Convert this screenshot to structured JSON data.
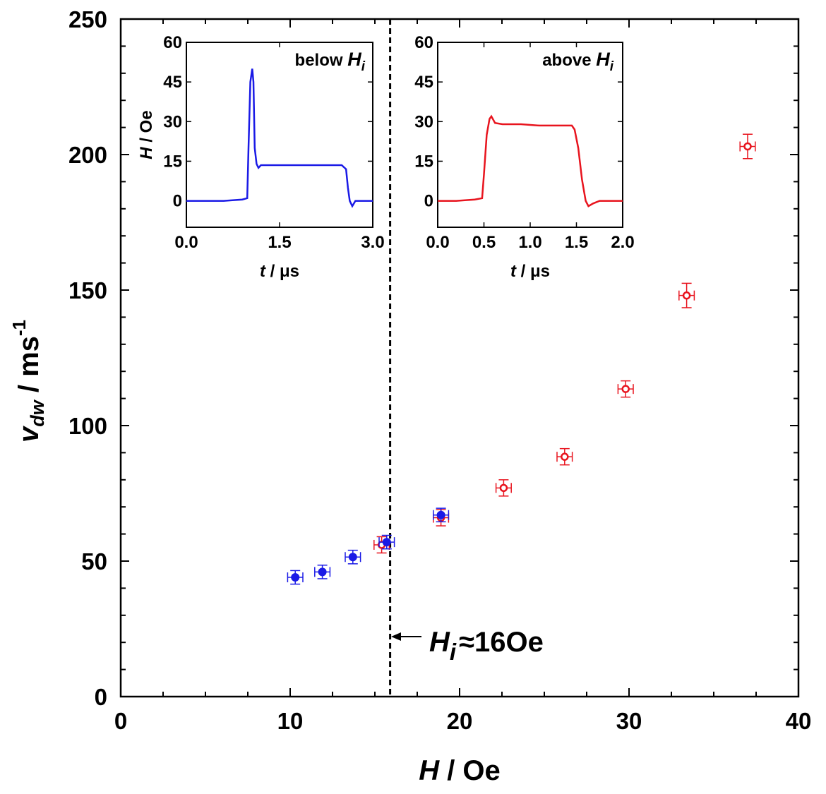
{
  "chart_data": [
    {
      "type": "scatter",
      "id": "main",
      "xlabel": {
        "symbol": "H",
        "unit": " / Oe"
      },
      "ylabel": {
        "symbol": "v",
        "sub": "dw",
        "unit": " / ms",
        "sup": "-1"
      },
      "xlim": [
        0,
        40
      ],
      "ylim": [
        0,
        250
      ],
      "xticks": [
        0,
        10,
        20,
        30,
        40
      ],
      "yticks": [
        0,
        50,
        100,
        150,
        200,
        250
      ],
      "series": [
        {
          "name": "open-red",
          "color": "#e8141e",
          "marker": "open-circle",
          "x": [
            15.4,
            18.9,
            22.6,
            26.2,
            29.8,
            33.4,
            37.0
          ],
          "y": [
            56,
            66,
            77,
            88.5,
            113.5,
            148,
            203
          ],
          "xerr": [
            0.45,
            0.45,
            0.45,
            0.45,
            0.45,
            0.45,
            0.45
          ],
          "yerr": [
            3,
            3,
            3,
            3,
            3,
            4.5,
            4.5
          ]
        },
        {
          "name": "filled-blue",
          "color": "#1a1ae6",
          "marker": "filled-circle",
          "x": [
            10.3,
            11.9,
            13.7,
            15.7,
            18.9
          ],
          "y": [
            44,
            46,
            51.5,
            57,
            67
          ],
          "xerr": [
            0.45,
            0.45,
            0.45,
            0.45,
            0.45
          ],
          "yerr": [
            2.5,
            2.5,
            2.5,
            2.5,
            2.5
          ]
        }
      ],
      "annotation": {
        "x": 15.9,
        "label_symbol": "H",
        "label_sub": "i",
        "label_rest": "≈16Oe"
      }
    },
    {
      "type": "line",
      "id": "inset-below",
      "title_text": "below ",
      "title_symbol": "H",
      "title_sub": "i",
      "xlabel": {
        "symbol": "t",
        "unit": " / μs"
      },
      "ylabel": {
        "symbol": "H",
        "unit": " / Oe"
      },
      "xlim": [
        0,
        3
      ],
      "ylim": [
        -10,
        60
      ],
      "xticks": [
        "0.0",
        "1.5",
        "3.0"
      ],
      "yticks": [
        "0",
        "15",
        "30",
        "45",
        "60"
      ],
      "color": "#1a1ae6",
      "x": [
        0.0,
        0.3,
        0.6,
        0.9,
        0.98,
        1.0,
        1.03,
        1.06,
        1.08,
        1.1,
        1.13,
        1.16,
        1.2,
        1.4,
        1.7,
        2.0,
        2.3,
        2.5,
        2.57,
        2.6,
        2.63,
        2.67,
        2.72,
        2.8,
        3.0
      ],
      "y": [
        0,
        0,
        0,
        0.5,
        1,
        20,
        45,
        50,
        45,
        20,
        14,
        12.5,
        13.5,
        13.5,
        13.5,
        13.5,
        13.5,
        13.5,
        12,
        5,
        0,
        -2,
        0,
        0,
        0
      ]
    },
    {
      "type": "line",
      "id": "inset-above",
      "title_text": "above ",
      "title_symbol": "H",
      "title_sub": "i",
      "xlabel": {
        "symbol": "t",
        "unit": " / μs"
      },
      "ylabel": {
        "symbol": "H",
        "unit": " / Oe"
      },
      "xlim": [
        0,
        2
      ],
      "ylim": [
        -10,
        60
      ],
      "xticks": [
        "0.0",
        "0.5",
        "1.0",
        "1.5",
        "2.0"
      ],
      "yticks": [
        "0",
        "15",
        "30",
        "45",
        "60"
      ],
      "color": "#e8141e",
      "x": [
        0.0,
        0.2,
        0.4,
        0.48,
        0.5,
        0.53,
        0.56,
        0.58,
        0.62,
        0.7,
        0.9,
        1.1,
        1.3,
        1.45,
        1.48,
        1.52,
        1.56,
        1.6,
        1.63,
        1.68,
        1.75,
        2.0
      ],
      "y": [
        0,
        0,
        0.5,
        1,
        10,
        25,
        31,
        32,
        29.5,
        29,
        29,
        28.5,
        28.5,
        28.5,
        27,
        20,
        8,
        0,
        -2,
        -1,
        0,
        0
      ]
    }
  ]
}
